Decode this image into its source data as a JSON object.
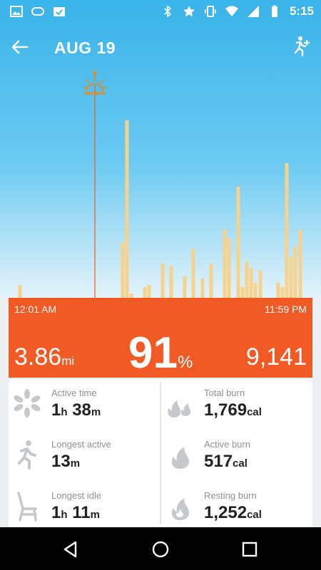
{
  "status_bar": {
    "time": "5:15",
    "icons": [
      "gallery-icon",
      "voicemail-icon",
      "upload-icon",
      "bluetooth-icon",
      "star-icon",
      "vibrate-icon",
      "wifi-icon",
      "signal-icon",
      "battery-icon"
    ]
  },
  "header": {
    "title": "AUG 19",
    "back_icon": "arrow-left-icon",
    "add_activity_icon": "add-activity-icon"
  },
  "colors": {
    "sky_top": "#39b3e9",
    "bar": "#f6d28c",
    "orange": "#f15a24",
    "icon_gray": "#c6c9cc"
  },
  "summary": {
    "start_time": "12:01 AM",
    "end_time": "11:59 PM",
    "distance_value": "3.86",
    "distance_unit": "mi",
    "goal_percent": "91",
    "goal_unit": "%",
    "steps": "9,141"
  },
  "stats": {
    "active_time": {
      "label": "Active time",
      "h": "1",
      "h_unit": "h",
      "m": "38",
      "m_unit": "m"
    },
    "longest_active": {
      "label": "Longest active",
      "m": "13",
      "m_unit": "m"
    },
    "longest_idle": {
      "label": "Longest idle",
      "h": "1",
      "h_unit": "h",
      "m": "11",
      "m_unit": "m"
    },
    "total_burn": {
      "label": "Total burn",
      "value": "1,769",
      "unit": "cal"
    },
    "active_burn": {
      "label": "Active burn",
      "value": "517",
      "unit": "cal"
    },
    "resting_burn": {
      "label": "Resting burn",
      "value": "1,252",
      "unit": "cal"
    }
  },
  "activity_chart": {
    "type": "bar",
    "bars": [
      {
        "x": 28,
        "v": 0.06
      },
      {
        "x": 172,
        "v": 0.26
      },
      {
        "x": 178,
        "v": 0.83
      },
      {
        "x": 184,
        "v": 0.02
      },
      {
        "x": 203,
        "v": 0.05
      },
      {
        "x": 209,
        "v": 0.06
      },
      {
        "x": 228,
        "v": 0.16
      },
      {
        "x": 240,
        "v": 0.15
      },
      {
        "x": 259,
        "v": 0.1
      },
      {
        "x": 271,
        "v": 0.23
      },
      {
        "x": 284,
        "v": 0.09
      },
      {
        "x": 296,
        "v": 0.16
      },
      {
        "x": 315,
        "v": 0.32
      },
      {
        "x": 321,
        "v": 0.28
      },
      {
        "x": 334,
        "v": 0.52
      },
      {
        "x": 340,
        "v": 0.05
      },
      {
        "x": 346,
        "v": 0.17
      },
      {
        "x": 352,
        "v": 0.14
      },
      {
        "x": 358,
        "v": 0.07
      },
      {
        "x": 365,
        "v": 0.13
      },
      {
        "x": 390,
        "v": 0.07
      },
      {
        "x": 396,
        "v": 0.05
      },
      {
        "x": 402,
        "v": 0.63
      },
      {
        "x": 408,
        "v": 0.19
      },
      {
        "x": 414,
        "v": 0.24
      },
      {
        "x": 421,
        "v": 0.32
      }
    ],
    "marker_x": 133,
    "marker_icon": "sunrise-icon"
  },
  "nav": [
    "back-nav-icon",
    "home-nav-icon",
    "recents-nav-icon"
  ]
}
